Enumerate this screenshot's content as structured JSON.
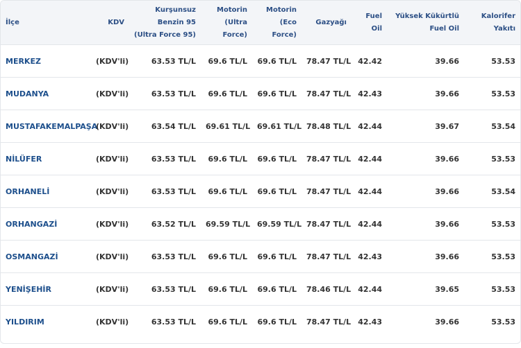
{
  "table": {
    "headers": [
      "İlçe",
      "KDV",
      "Kurşunsuz\nBenzin 95\n(Ultra Force 95)",
      "Motorin\n(Ultra\nForce)",
      "Motorin\n(Eco Force)",
      "Gazyağı",
      "Fuel\nOil",
      "Yüksek Kükürtlü\nFuel Oil",
      "Kalorifer\nYakıtı"
    ],
    "rows": [
      [
        "MERKEZ",
        "(KDV'li)",
        "63.53 TL/L",
        "69.6 TL/L",
        "69.6 TL/L",
        "78.47 TL/L",
        "42.42",
        "39.66",
        "53.53"
      ],
      [
        "MUDANYA",
        "(KDV'li)",
        "63.53 TL/L",
        "69.6 TL/L",
        "69.6 TL/L",
        "78.47 TL/L",
        "42.43",
        "39.66",
        "53.53"
      ],
      [
        "MUSTAFAKEMALPAŞA",
        "(KDV'li)",
        "63.54 TL/L",
        "69.61 TL/L",
        "69.61 TL/L",
        "78.48 TL/L",
        "42.44",
        "39.67",
        "53.54"
      ],
      [
        "NİLÜFER",
        "(KDV'li)",
        "63.53 TL/L",
        "69.6 TL/L",
        "69.6 TL/L",
        "78.47 TL/L",
        "42.44",
        "39.66",
        "53.53"
      ],
      [
        "ORHANELİ",
        "(KDV'li)",
        "63.53 TL/L",
        "69.6 TL/L",
        "69.6 TL/L",
        "78.47 TL/L",
        "42.44",
        "39.66",
        "53.54"
      ],
      [
        "ORHANGAZİ",
        "(KDV'li)",
        "63.52 TL/L",
        "69.59 TL/L",
        "69.59 TL/L",
        "78.47 TL/L",
        "42.44",
        "39.66",
        "53.53"
      ],
      [
        "OSMANGAZİ",
        "(KDV'li)",
        "63.53 TL/L",
        "69.6 TL/L",
        "69.6 TL/L",
        "78.47 TL/L",
        "42.43",
        "39.66",
        "53.53"
      ],
      [
        "YENİŞEHİR",
        "(KDV'li)",
        "63.53 TL/L",
        "69.6 TL/L",
        "69.6 TL/L",
        "78.46 TL/L",
        "42.44",
        "39.65",
        "53.53"
      ],
      [
        "YILDIRIM",
        "(KDV'li)",
        "63.53 TL/L",
        "69.6 TL/L",
        "69.6 TL/L",
        "78.47 TL/L",
        "42.43",
        "39.66",
        "53.53"
      ]
    ]
  }
}
